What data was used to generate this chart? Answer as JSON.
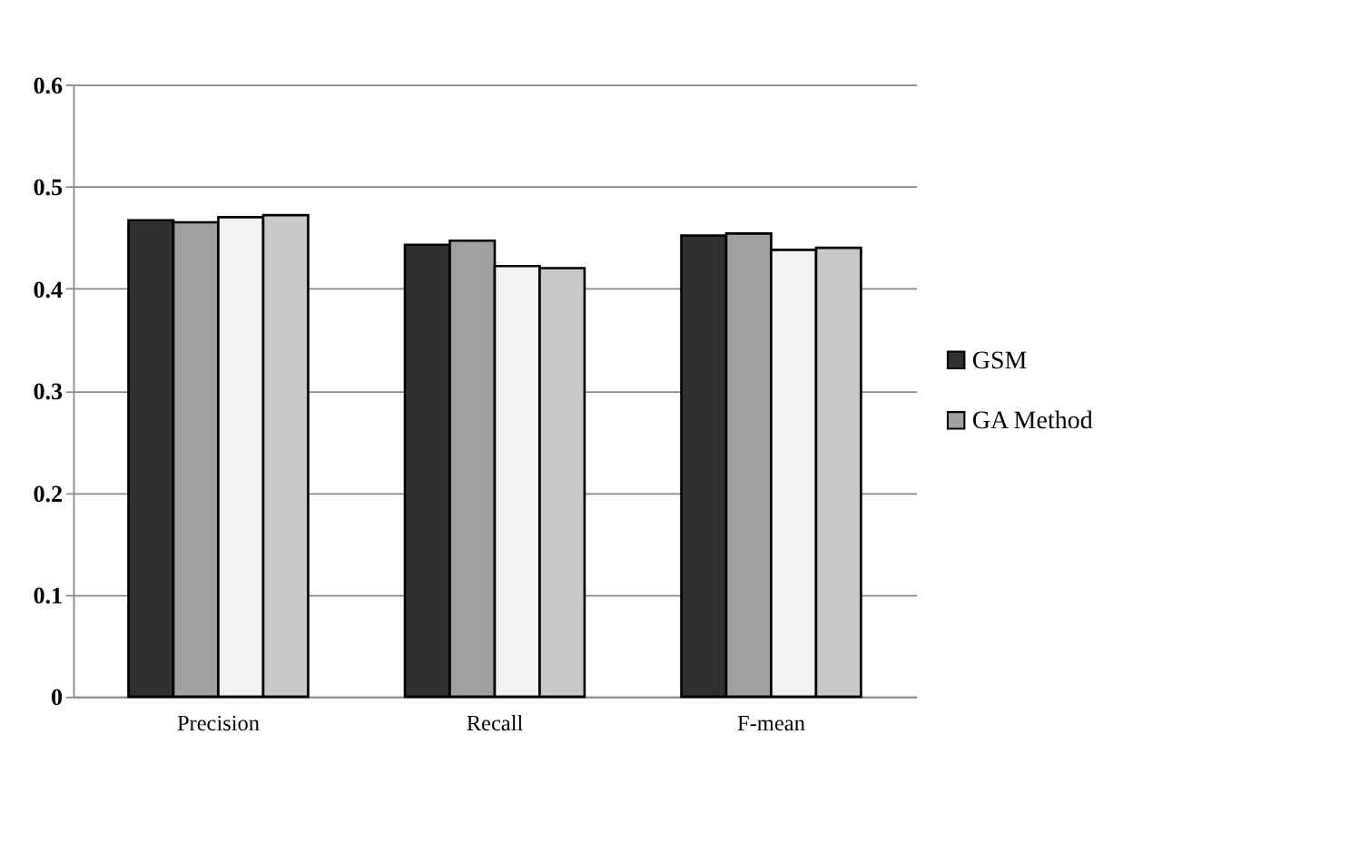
{
  "chart_data": {
    "type": "bar",
    "categories": [
      "Precision",
      "Recall",
      "F-mean"
    ],
    "series": [
      {
        "name": "GSM",
        "color": "#303030",
        "values": [
          0.467,
          0.443,
          0.452
        ]
      },
      {
        "name": "GA Method",
        "color": "#a0a0a0",
        "values": [
          0.465,
          0.447,
          0.454
        ]
      },
      {
        "color": "#f2f2f2",
        "values": [
          0.47,
          0.422,
          0.438
        ]
      },
      {
        "color": "#c8c8c8",
        "values": [
          0.472,
          0.42,
          0.44
        ]
      }
    ],
    "ylim": [
      0,
      0.6
    ],
    "yticks": [
      0,
      0.1,
      0.2,
      0.3,
      0.4,
      0.5,
      0.6
    ],
    "grid": "y",
    "legend": "right"
  }
}
